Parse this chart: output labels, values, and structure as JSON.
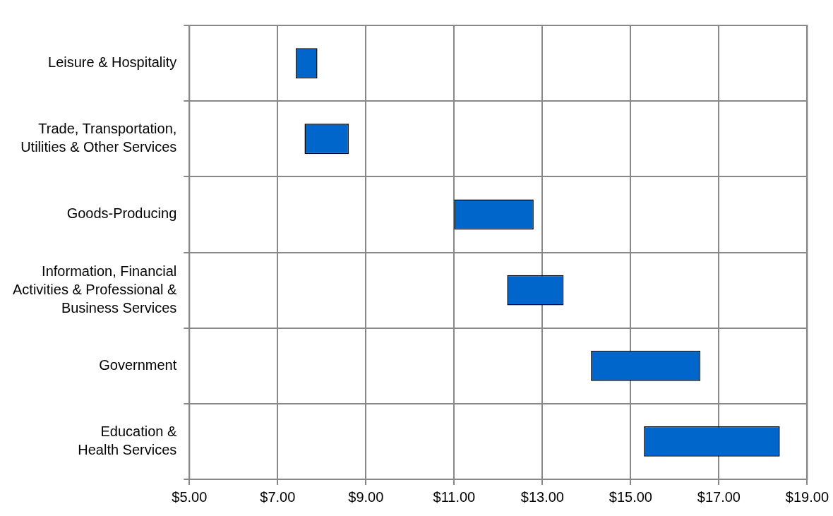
{
  "chart_data": {
    "type": "bar",
    "orientation": "horizontal",
    "categories": [
      "Leisure & Hospitality",
      "Trade, Transportation,\nUtilities & Other Services",
      "Goods-Producing",
      "Information, Financial\nActivities & Professional &\nBusiness Services",
      "Government",
      "Education &\nHealth Services"
    ],
    "base": [
      7.41,
      7.61,
      11.0,
      12.2,
      14.1,
      15.3
    ],
    "values": [
      0.49,
      1.0,
      1.8,
      1.28,
      2.48,
      3.08
    ],
    "color": "#0066cc",
    "xlim": [
      5,
      19
    ],
    "xticks": [
      {
        "value": 5,
        "label": "$5.00"
      },
      {
        "value": 7,
        "label": "$7.00"
      },
      {
        "value": 9,
        "label": "$9.00"
      },
      {
        "value": 11,
        "label": "$11.00"
      },
      {
        "value": 13,
        "label": "$13.00"
      },
      {
        "value": 15,
        "label": "$15.00"
      },
      {
        "value": 17,
        "label": "$17.00"
      },
      {
        "value": 19,
        "label": "$19.00"
      }
    ],
    "grid": true,
    "legend": false
  }
}
